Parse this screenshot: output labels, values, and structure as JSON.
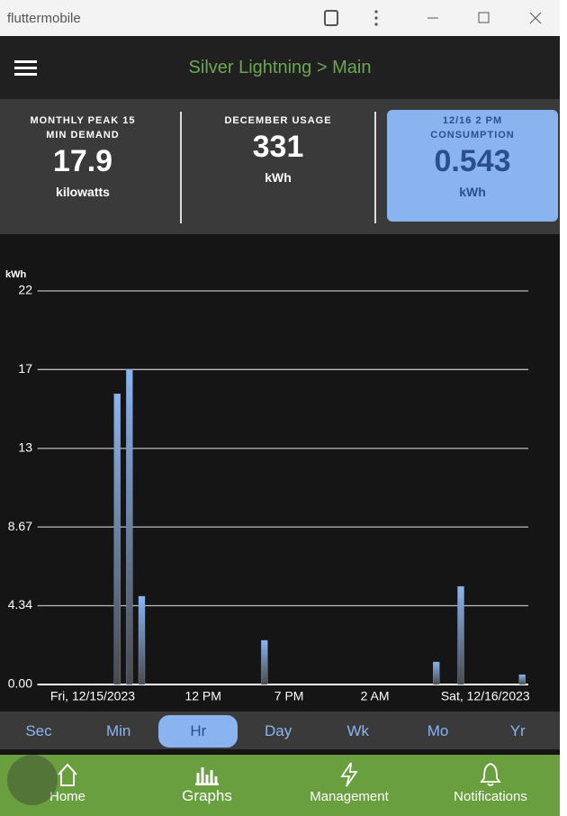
{
  "window": {
    "title": "fluttermobile"
  },
  "header": {
    "title": "Silver Lightning > Main"
  },
  "stats": [
    {
      "label": "MONTHLY PEAK 15 MIN DEMAND",
      "value": "17.9",
      "unit": "kilowatts"
    },
    {
      "label": "DECEMBER USAGE",
      "value": "331",
      "unit": "kWh"
    },
    {
      "label": "12/16 2 PM CONSUMPTION",
      "value": "0.543",
      "unit": "kWh"
    }
  ],
  "chart_data": {
    "type": "bar",
    "y_label": "kWh",
    "categories": [
      null,
      null,
      null,
      null,
      "Fri, 12/15/2023",
      null,
      null,
      null,
      null,
      null,
      null,
      null,
      null,
      "12 PM",
      null,
      null,
      null,
      null,
      null,
      null,
      "7 PM",
      null,
      null,
      null,
      null,
      null,
      null,
      "2 AM",
      null,
      null,
      null,
      null,
      null,
      null,
      null,
      null,
      "Sat, 12/16/2023",
      null,
      null,
      null
    ],
    "values": [
      0,
      0,
      0,
      0,
      0,
      0,
      16.0,
      17.35,
      4.86,
      0,
      0,
      0,
      0,
      0,
      0,
      0,
      0,
      0,
      2.43,
      0,
      0,
      0,
      0,
      0,
      0,
      0,
      0,
      0,
      0,
      0,
      0,
      0,
      1.24,
      0,
      5.4,
      0,
      0,
      0,
      0,
      0.543
    ],
    "color": "#8ab4f0",
    "ylim": [
      0,
      21.67
    ],
    "yticks": [
      {
        "value": 0,
        "label": "0.00"
      },
      4.34,
      8.67,
      13,
      {
        "value": 17.34,
        "label": "17"
      },
      {
        "value": 21.67,
        "label": "22"
      }
    ],
    "grid": true
  },
  "tabs": [
    "Sec",
    "Min",
    "Hr",
    "Day",
    "Wk",
    "Mo",
    "Yr"
  ],
  "selected_tab": 2,
  "nav": [
    "Home",
    "Graphs",
    "Management",
    "Notifications"
  ]
}
